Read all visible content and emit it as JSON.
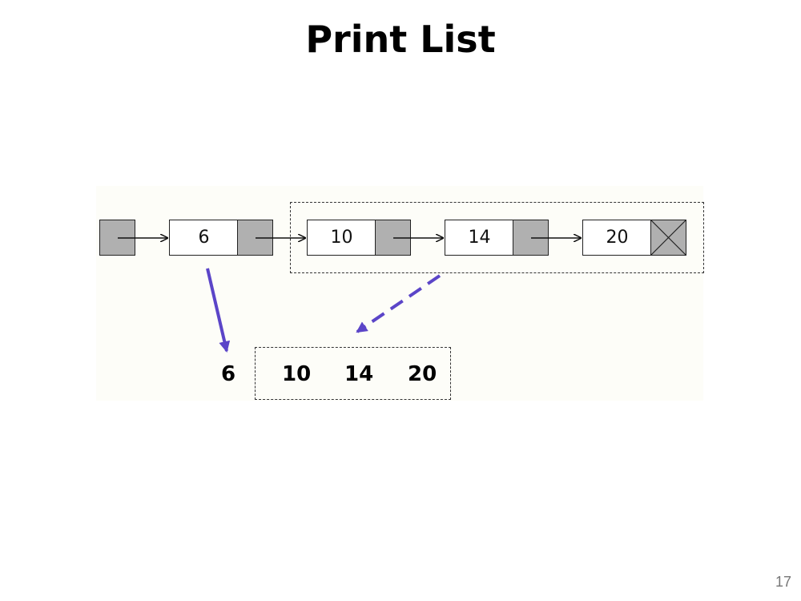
{
  "title": "Print List",
  "list": {
    "nodes": [
      {
        "value": "6"
      },
      {
        "value": "10"
      },
      {
        "value": "14"
      },
      {
        "value": "20"
      }
    ]
  },
  "output": {
    "first": "6",
    "rest": [
      "10",
      "14",
      "20"
    ]
  },
  "page_number": "17",
  "colors": {
    "arrow_purple": "#5b45c8",
    "pointer_fill": "#b0b0b0"
  }
}
